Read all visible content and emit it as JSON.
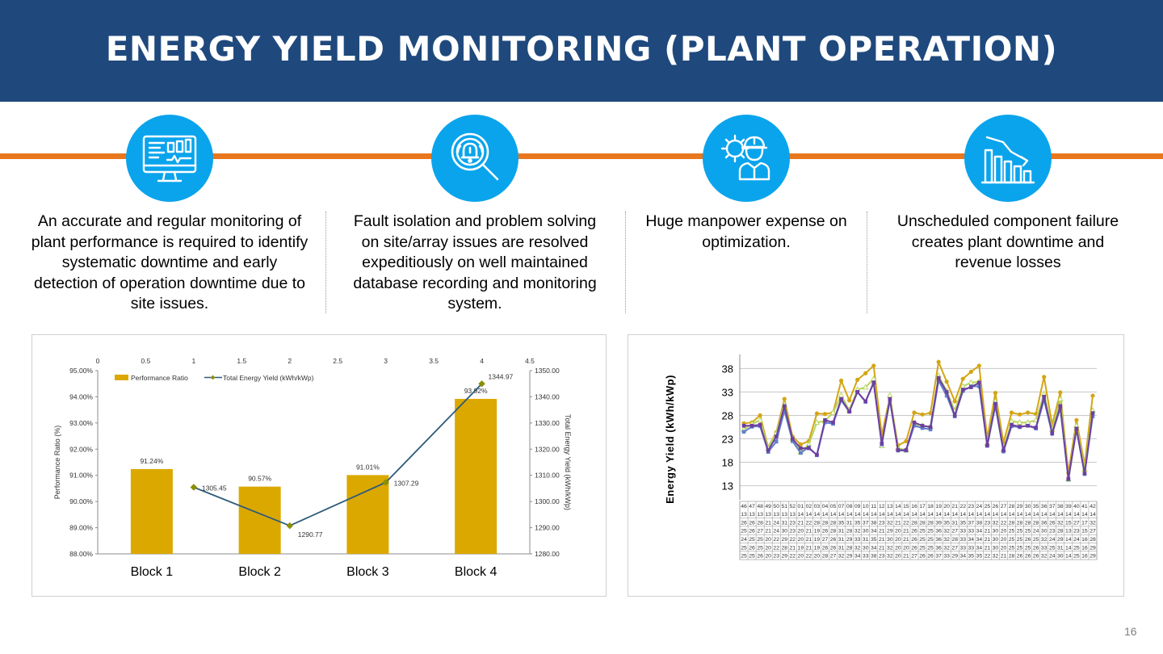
{
  "slide": {
    "title": "ENERGY YIELD MONITORING (PLANT OPERATION)",
    "page_number": "16",
    "accent_color": "#e8771e",
    "header_color": "#1f497d",
    "icon_color": "#0aa4ec"
  },
  "features": [
    {
      "icon": "monitor-dashboard-icon",
      "text": "An accurate and regular monitoring of plant performance is required to identify systematic downtime and early detection of operation downtime due to site issues."
    },
    {
      "icon": "alert-magnifier-icon",
      "text": "Fault isolation and problem solving on site/array issues are resolved expeditiously on  well maintained database recording and monitoring system."
    },
    {
      "icon": "engineer-gear-icon",
      "text": "Huge manpower expense on optimization."
    },
    {
      "icon": "declining-bar-chart-icon",
      "text": "Unscheduled component failure creates plant downtime and revenue losses"
    }
  ],
  "chart_data": [
    {
      "type": "bar",
      "categories": [
        "Block 1",
        "Block 2",
        "Block 3",
        "Block 4"
      ],
      "series": [
        {
          "name": "Performance Ratio",
          "type": "bar",
          "axis": "left",
          "color": "#dba800",
          "values": [
            91.24,
            90.57,
            91.01,
            93.92
          ],
          "labels": [
            "91.24%",
            "90.57%",
            "91.01%",
            "93.92%"
          ]
        },
        {
          "name": "Total Energy Yield (kWh/kWp)",
          "type": "line",
          "axis": "right",
          "color": "#2e5b7a",
          "marker_color": "#8a8f00",
          "x": [
            1,
            2,
            3,
            4
          ],
          "values": [
            1305.45,
            1290.77,
            1307.29,
            1344.97
          ],
          "labels": [
            "1305.45",
            "1290.77",
            "1307.29",
            "1344.97"
          ]
        }
      ],
      "ylabel": "Performance Ratio (%)",
      "y2label": "Total Energy Yield (kWh/kWp)",
      "ylim": [
        88,
        95
      ],
      "y2lim": [
        1280,
        1350
      ],
      "x2lim": [
        0,
        4.5
      ],
      "y_ticks": [
        "88.00%",
        "89.00%",
        "90.00%",
        "91.00%",
        "92.00%",
        "93.00%",
        "94.00%",
        "95.00%"
      ],
      "y2_ticks": [
        "1280.00",
        "1290.00",
        "1300.00",
        "1310.00",
        "1320.00",
        "1330.00",
        "1340.00",
        "1350.00"
      ],
      "x2_ticks": [
        "0",
        "0.5",
        "1",
        "1.5",
        "2",
        "2.5",
        "3",
        "3.5",
        "4",
        "4.5"
      ],
      "legend": "top-left",
      "grid": false
    },
    {
      "type": "line",
      "ylabel": "Energy Yield  (kWh/kWp)",
      "ylim": [
        10,
        41
      ],
      "y_ticks": [
        "13",
        "18",
        "23",
        "28",
        "33",
        "38"
      ],
      "grid": true,
      "week_labels": [
        "46",
        "47",
        "48",
        "49",
        "50",
        "51",
        "52",
        "01",
        "02",
        "03",
        "04",
        "05",
        "07",
        "08",
        "09",
        "10",
        "11",
        "12",
        "13",
        "14",
        "15",
        "16",
        "17",
        "18",
        "19",
        "20",
        "21",
        "22",
        "23",
        "24",
        "25",
        "26",
        "27",
        "28",
        "29",
        "30",
        "35",
        "36",
        "37",
        "38",
        "39",
        "40",
        "41",
        "42"
      ],
      "year_labels": [
        "13",
        "13",
        "13",
        "13",
        "13",
        "13",
        "13",
        "14",
        "14",
        "14",
        "14",
        "14",
        "14",
        "14",
        "14",
        "14",
        "14",
        "14",
        "14",
        "14",
        "14",
        "14",
        "14",
        "14",
        "14",
        "14",
        "14",
        "14",
        "14",
        "14",
        "14",
        "14",
        "14",
        "14",
        "14",
        "14",
        "14",
        "14",
        "14",
        "14",
        "14",
        "14",
        "14",
        "14"
      ],
      "series": [
        {
          "name": "",
          "color": "#d4a514",
          "marker": "circle",
          "values": [
            26.3,
            26.5,
            28,
            21.2,
            24.4,
            31.5,
            23.5,
            21.8,
            22.5,
            28.4,
            28.3,
            28.6,
            35.4,
            31.2,
            35.6,
            37.0,
            38.6,
            23.8,
            32.0,
            21.6,
            22.5,
            28.6,
            28.2,
            28.5,
            39.4,
            35.2,
            31.0,
            35.8,
            37.3,
            38.6,
            23.2,
            32.8,
            22.2,
            28.6,
            28.2,
            28.6,
            28.3,
            36.2,
            26.0,
            32.9,
            15.7,
            27.0,
            17.5,
            32.2
          ]
        },
        {
          "name": "",
          "color": "#b8d65c",
          "marker": "triangle",
          "values": [
            25.0,
            26.2,
            27.0,
            21.0,
            24.2,
            30.3,
            23.0,
            20.2,
            21.8,
            26.5,
            26.8,
            28.6,
            32.3,
            29.1,
            33.5,
            34.0,
            35.8,
            21.5,
            32.3,
            21.0,
            20.6,
            26.0,
            25.8,
            25.6,
            36.5,
            33.2,
            29.0,
            34.2,
            35.0,
            35.2,
            22.0,
            31.0,
            20.7,
            26.8,
            26.5,
            26.5,
            27.0,
            32.6,
            25.0,
            31.5,
            14.4,
            25.8,
            16.5,
            29.0
          ]
        },
        {
          "name": "",
          "color": "#5f7fcf",
          "marker": "square",
          "values": [
            24.5,
            25.6,
            25.7,
            20.2,
            22.4,
            29.0,
            22.5,
            20.0,
            21.2,
            19.5,
            26.5,
            26.2,
            31.2,
            28.8,
            33.0,
            30.9,
            34.9,
            21.8,
            31.2,
            20.5,
            20.5,
            25.8,
            25.3,
            25.0,
            35.4,
            32.2,
            27.8,
            33.2,
            34.2,
            34.2,
            21.5,
            30.0,
            20.3,
            25.7,
            25.5,
            25.8,
            25.2,
            31.3,
            24.1,
            29.5,
            14.3,
            25.0,
            15.5,
            27.8
          ]
        },
        {
          "name": "",
          "color": "#6e3fa0",
          "marker": "square",
          "values": [
            25.8,
            25.8,
            26.0,
            20.5,
            23.5,
            30.0,
            23.0,
            21.0,
            21.0,
            19.6,
            27.0,
            26.5,
            31.5,
            28.8,
            33.0,
            31.0,
            35.0,
            22.0,
            31.5,
            20.6,
            20.6,
            26.5,
            25.8,
            25.5,
            36.0,
            33.0,
            28.0,
            33.5,
            34.0,
            35.0,
            21.6,
            30.5,
            20.5,
            26.0,
            25.6,
            25.8,
            25.4,
            32.0,
            24.2,
            30.0,
            14.5,
            25.2,
            15.6,
            28.5
          ]
        }
      ],
      "table_rows": [
        [
          "26",
          "26",
          "28",
          "21",
          "24",
          "31",
          "23",
          "21",
          "22",
          "28",
          "28",
          "28",
          "35",
          "31",
          "35",
          "37",
          "38",
          "23",
          "32",
          "21",
          "22",
          "28",
          "28",
          "28",
          "39",
          "35",
          "31",
          "35",
          "37",
          "38",
          "23",
          "32",
          "22",
          "28",
          "28",
          "28",
          "28",
          "36",
          "26",
          "32",
          "15",
          "27",
          "17",
          "32"
        ],
        [
          "25",
          "26",
          "27",
          "21",
          "24",
          "30",
          "23",
          "20",
          "21",
          "19",
          "26",
          "28",
          "31",
          "28",
          "32",
          "30",
          "34",
          "21",
          "29",
          "20",
          "21",
          "26",
          "25",
          "25",
          "36",
          "32",
          "27",
          "33",
          "33",
          "34",
          "21",
          "30",
          "20",
          "25",
          "25",
          "25",
          "24",
          "30",
          "23",
          "28",
          "13",
          "23",
          "15",
          "27"
        ],
        [
          "24",
          "25",
          "25",
          "20",
          "22",
          "29",
          "22",
          "20",
          "21",
          "19",
          "27",
          "26",
          "31",
          "29",
          "33",
          "31",
          "35",
          "21",
          "30",
          "20",
          "21",
          "26",
          "25",
          "25",
          "36",
          "32",
          "28",
          "33",
          "34",
          "34",
          "21",
          "30",
          "20",
          "25",
          "25",
          "26",
          "25",
          "32",
          "24",
          "29",
          "14",
          "24",
          "16",
          "28"
        ],
        [
          "25",
          "26",
          "25",
          "20",
          "22",
          "28",
          "21",
          "19",
          "21",
          "19",
          "26",
          "26",
          "31",
          "28",
          "32",
          "30",
          "34",
          "21",
          "32",
          "20",
          "20",
          "26",
          "25",
          "25",
          "36",
          "32",
          "27",
          "33",
          "33",
          "34",
          "21",
          "30",
          "20",
          "25",
          "25",
          "25",
          "26",
          "33",
          "25",
          "31",
          "14",
          "25",
          "16",
          "29"
        ],
        [
          "25",
          "25",
          "26",
          "20",
          "23",
          "29",
          "22",
          "20",
          "22",
          "20",
          "28",
          "27",
          "32",
          "29",
          "34",
          "33",
          "38",
          "23",
          "32",
          "20",
          "21",
          "27",
          "26",
          "26",
          "37",
          "33",
          "29",
          "34",
          "35",
          "35",
          "22",
          "32",
          "21",
          "28",
          "26",
          "26",
          "26",
          "32",
          "24",
          "30",
          "14",
          "25",
          "16",
          "29"
        ]
      ]
    }
  ]
}
